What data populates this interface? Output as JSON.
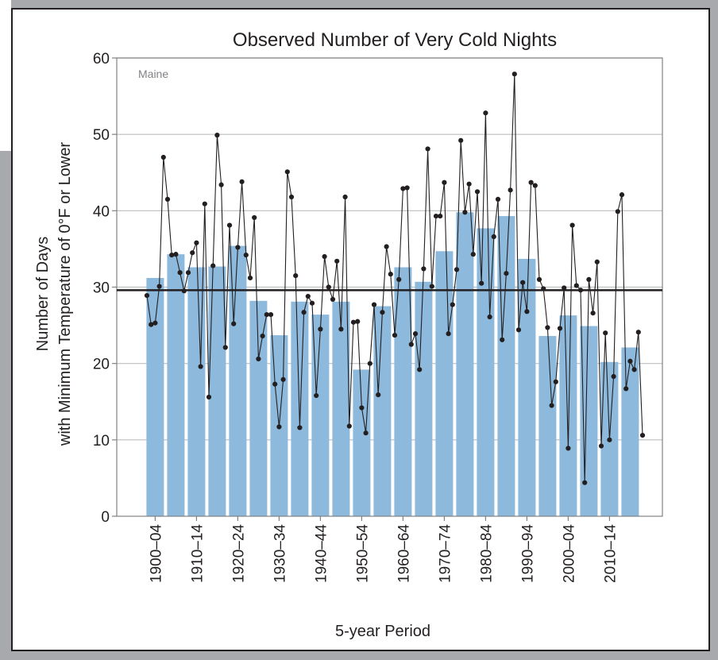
{
  "chart_data": {
    "type": "bar",
    "title": "Observed Number of Very Cold Nights",
    "annotation": "Maine",
    "xlabel": "5-year Period",
    "ylabel_lines": [
      "Number of Days",
      "with Minimum Temperature of 0°F or Lower"
    ],
    "ylim": [
      0,
      60
    ],
    "yticks": [
      0,
      10,
      20,
      30,
      40,
      50,
      60
    ],
    "grid": true,
    "reference_line": 29.6,
    "x_tick_labels": [
      "1900–04",
      "1910–14",
      "1920–24",
      "1930–34",
      "1940–44",
      "1950–54",
      "1960–64",
      "1970–74",
      "1980–84",
      "1990–94",
      "2000–04",
      "2010–14"
    ],
    "categories": [
      "1900–04",
      "1905–09",
      "1910–14",
      "1915–19",
      "1920–24",
      "1925–29",
      "1930–34",
      "1935–39",
      "1940–44",
      "1945–49",
      "1950–54",
      "1955–59",
      "1960–64",
      "1965–69",
      "1970–74",
      "1975–79",
      "1980–84",
      "1985–89",
      "1990–94",
      "1995–99",
      "2000–04",
      "2005–09",
      "2010–14",
      "2015–19"
    ],
    "values": [
      31.2,
      34.3,
      32.6,
      32.7,
      35.4,
      28.2,
      23.7,
      28.1,
      26.4,
      28.1,
      19.2,
      27.5,
      32.6,
      30.7,
      34.7,
      39.8,
      37.7,
      39.3,
      33.7,
      23.6,
      26.3,
      24.9,
      20.2,
      22.1
    ],
    "annual": {
      "years": [
        1900,
        1901,
        1902,
        1903,
        1904,
        1905,
        1906,
        1907,
        1908,
        1909,
        1910,
        1911,
        1912,
        1913,
        1914,
        1915,
        1916,
        1917,
        1918,
        1919,
        1920,
        1921,
        1922,
        1923,
        1924,
        1925,
        1926,
        1927,
        1928,
        1929,
        1930,
        1931,
        1932,
        1933,
        1934,
        1935,
        1936,
        1937,
        1938,
        1939,
        1940,
        1941,
        1942,
        1943,
        1944,
        1945,
        1946,
        1947,
        1948,
        1949,
        1950,
        1951,
        1952,
        1953,
        1954,
        1955,
        1956,
        1957,
        1958,
        1959,
        1960,
        1961,
        1962,
        1963,
        1964,
        1965,
        1966,
        1967,
        1968,
        1969,
        1970,
        1971,
        1972,
        1973,
        1974,
        1975,
        1976,
        1977,
        1978,
        1979,
        1980,
        1981,
        1982,
        1983,
        1984,
        1985,
        1986,
        1987,
        1988,
        1989,
        1990,
        1991,
        1992,
        1993,
        1994,
        1995,
        1996,
        1997,
        1998,
        1999,
        2000,
        2001,
        2002,
        2003,
        2004,
        2005,
        2006,
        2007,
        2008,
        2009,
        2010,
        2011,
        2012,
        2013,
        2014,
        2015,
        2016,
        2017,
        2018,
        2019,
        2020
      ],
      "values": [
        28.9,
        25.1,
        25.3,
        30.1,
        47,
        41.5,
        34.2,
        34.3,
        31.9,
        29.5,
        31.9,
        34.5,
        35.8,
        19.6,
        40.9,
        15.6,
        32.8,
        49.9,
        43.4,
        22.1,
        38.1,
        25.2,
        35.2,
        43.8,
        34.2,
        31.2,
        39.1,
        20.6,
        23.6,
        26.4,
        26.4,
        17.3,
        11.7,
        17.9,
        45.1,
        41.8,
        31.5,
        11.6,
        26.7,
        28.8,
        27.9,
        15.8,
        24.5,
        34,
        30,
        28.4,
        33.4,
        24.5,
        41.8,
        11.8,
        25.4,
        25.5,
        14.2,
        10.9,
        20,
        27.7,
        15.9,
        26.7,
        35.3,
        31.7,
        23.7,
        31,
        42.9,
        43,
        22.5,
        23.9,
        19.2,
        32.4,
        48.1,
        30.1,
        39.3,
        39.3,
        43.7,
        23.9,
        27.7,
        32.3,
        49.2,
        39.8,
        43.5,
        34.3,
        42.5,
        30.5,
        52.8,
        26.1,
        36.6,
        41.5,
        23.1,
        31.8,
        42.7,
        57.9,
        24.4,
        30.6,
        26.8,
        43.7,
        43.3,
        31,
        29.8,
        24.7,
        14.5,
        17.6,
        24.6,
        29.9,
        8.9,
        38.1,
        30.2,
        29.6,
        4.4,
        31,
        26.6,
        33.3,
        9.2,
        24,
        10,
        18.3,
        39.9,
        42.1,
        16.7,
        20.3,
        19.2,
        24.1,
        10.6
      ]
    },
    "colors": {
      "bars": "#8dbadc",
      "line": "#231f20",
      "reference": "#231f20",
      "grid": "#bcbec0",
      "axes": "#808285"
    }
  }
}
